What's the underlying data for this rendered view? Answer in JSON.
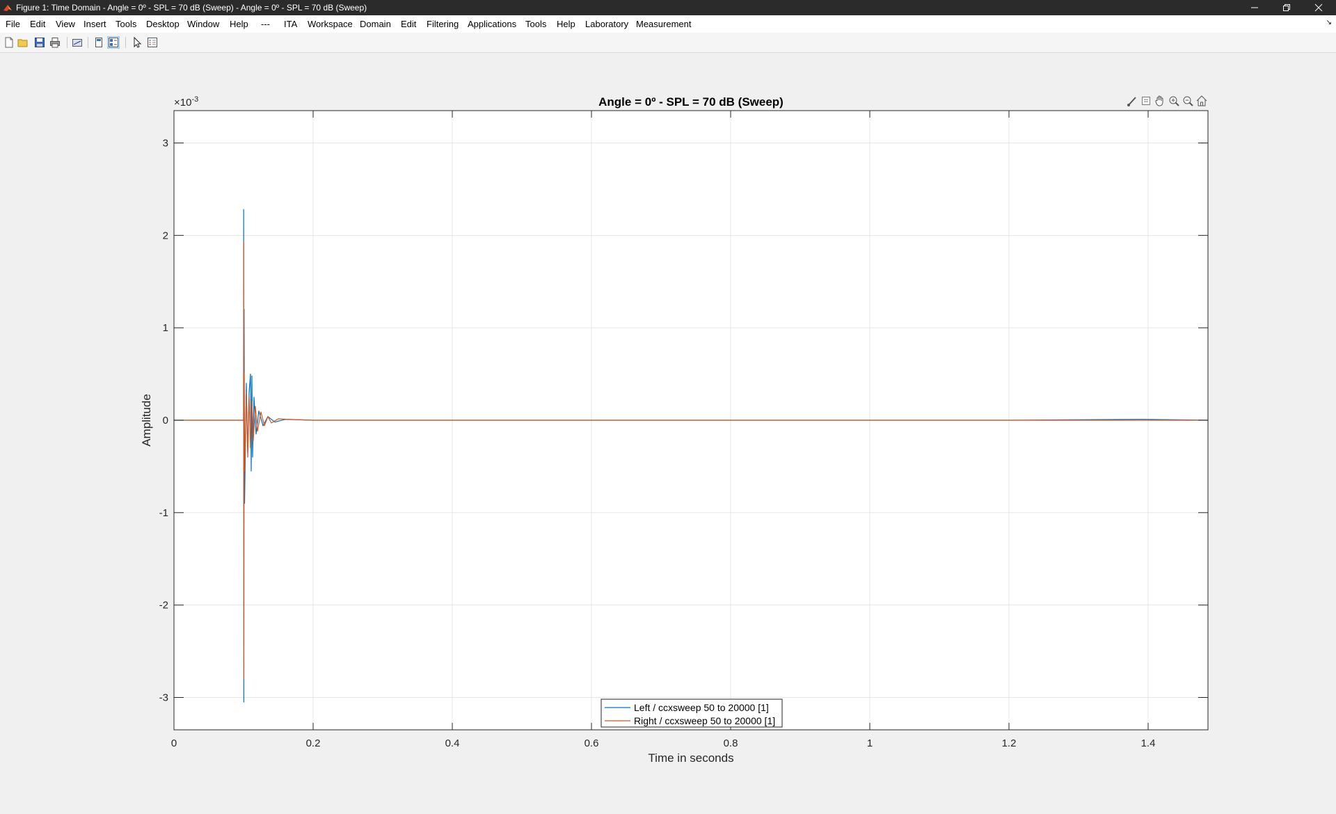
{
  "window": {
    "title": "Figure 1: Time Domain - Angle = 0º - SPL = 70 dB (Sweep) - Angle = 0º - SPL = 70 dB (Sweep)",
    "buttons": [
      "minimize-icon",
      "restore-icon",
      "close-icon"
    ]
  },
  "menu": {
    "items": [
      "File",
      "Edit",
      "View",
      "Insert",
      "Tools",
      "Desktop",
      "Window",
      "Help",
      "---",
      "ITA",
      "Workspace",
      "Domain",
      "Edit",
      "Filtering",
      "Applications",
      "Tools",
      "Help",
      "Laboratory",
      "Measurement"
    ]
  },
  "toolbar": {
    "icons": [
      "new-figure-icon",
      "open-file-icon",
      "save-icon",
      "print-icon",
      "link-plot-icon",
      "hide-plot-tools-icon",
      "show-plot-tools-icon",
      "edit-plot-arrow-icon",
      "insert-legend-icon"
    ]
  },
  "axes_toolbar": {
    "icons": [
      "brush-icon",
      "data-tips-icon",
      "pan-hand-icon",
      "zoom-in-icon",
      "zoom-out-icon",
      "restore-view-home-icon"
    ]
  },
  "colors": {
    "left_series": "#0072bd",
    "right_series": "#d95319",
    "grid": "#e6e6e6",
    "axes_bg": "#ffffff",
    "figure_bg": "#f0f0f0"
  },
  "chart_data": {
    "type": "line",
    "title": "Angle = 0º - SPL = 70 dB (Sweep)",
    "xlabel": "Time in seconds",
    "ylabel": "Amplitude",
    "y_exponent_label": "×10",
    "y_exponent_power": "-3",
    "xlim": [
      0,
      1.486
    ],
    "ylim": [
      -3.35,
      3.35
    ],
    "x_ticks": [
      "0",
      "0.2",
      "0.4",
      "0.6",
      "0.8",
      "1",
      "1.2",
      "1.4"
    ],
    "x_tick_values": [
      0,
      0.2,
      0.4,
      0.6,
      0.8,
      1,
      1.2,
      1.4
    ],
    "y_ticks": [
      "3",
      "2",
      "1",
      "0",
      "-1",
      "-2",
      "-3"
    ],
    "y_tick_values": [
      3,
      2,
      1,
      0,
      -1,
      -2,
      -3
    ],
    "grid": true,
    "legend_position": "bottom-center",
    "series": [
      {
        "name": "Left / ccxsweep 50 to 20000 [1]",
        "color": "#0072bd",
        "x": [
          0,
          0.1,
          0.1002,
          0.1004,
          0.1008,
          0.1015,
          0.104,
          0.106,
          0.108,
          0.11,
          0.111,
          0.112,
          0.113,
          0.115,
          0.118,
          0.122,
          0.128,
          0.135,
          0.145,
          0.16,
          0.2,
          0.4,
          0.6,
          0.8,
          1.0,
          1.2,
          1.39,
          1.486
        ],
        "y": [
          0,
          0,
          2.28,
          -3.05,
          1.2,
          -0.9,
          0.4,
          -0.35,
          0.3,
          0.5,
          -0.55,
          0.48,
          -0.4,
          0.25,
          -0.15,
          0.1,
          -0.06,
          0.04,
          -0.02,
          0.01,
          0,
          0,
          0,
          0,
          0,
          0,
          0.01,
          0
        ]
      },
      {
        "name": "Right / ccxsweep 50 to 20000 [1]",
        "color": "#d95319",
        "x": [
          0,
          0.1,
          0.1002,
          0.1004,
          0.1008,
          0.1015,
          0.104,
          0.106,
          0.108,
          0.11,
          0.112,
          0.114,
          0.117,
          0.12,
          0.125,
          0.13,
          0.135,
          0.14,
          0.15,
          0.165,
          0.2,
          0.4,
          0.6,
          0.8,
          1.0,
          1.2,
          1.4,
          1.486
        ],
        "y": [
          0,
          0,
          1.93,
          -2.8,
          0.52,
          -0.55,
          0.3,
          -0.4,
          0.25,
          -0.3,
          0.2,
          -0.22,
          0.15,
          -0.12,
          0.09,
          -0.06,
          0.04,
          -0.03,
          0.015,
          0.01,
          0,
          0,
          0,
          0,
          0,
          0,
          0,
          0
        ]
      }
    ]
  }
}
